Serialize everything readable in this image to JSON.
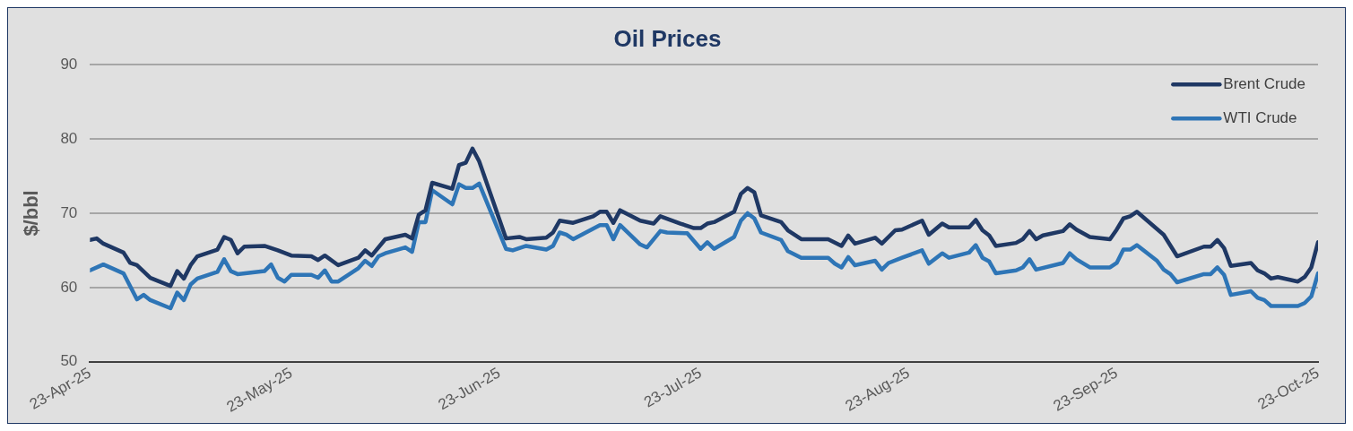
{
  "chart_data": {
    "type": "line",
    "title": "Oil Prices",
    "ylabel": "$/bbl",
    "ylim": [
      50,
      90
    ],
    "yticks": [
      50,
      60,
      70,
      80,
      90
    ],
    "xlim": [
      "2025-04-23",
      "2025-10-23"
    ],
    "xticks": [
      {
        "value": "2025-04-23",
        "label": "23-Apr-25"
      },
      {
        "value": "2025-05-23",
        "label": "23-May-25"
      },
      {
        "value": "2025-06-23",
        "label": "23-Jun-25"
      },
      {
        "value": "2025-07-23",
        "label": "23-Jul-25"
      },
      {
        "value": "2025-08-23",
        "label": "23-Aug-25"
      },
      {
        "value": "2025-09-23",
        "label": "23-Sep-25"
      },
      {
        "value": "2025-10-23",
        "label": "23-Oct-25"
      }
    ],
    "grid": "y",
    "legend": "top right",
    "series": [
      {
        "name": "Brent Crude",
        "color": "#1f3864",
        "x": [
          "2025-04-23",
          "2025-04-24",
          "2025-04-25",
          "2025-04-28",
          "2025-04-29",
          "2025-04-30",
          "2025-05-02",
          "2025-05-05",
          "2025-05-06",
          "2025-05-07",
          "2025-05-08",
          "2025-05-09",
          "2025-05-12",
          "2025-05-13",
          "2025-05-14",
          "2025-05-15",
          "2025-05-16",
          "2025-05-19",
          "2025-05-21",
          "2025-05-23",
          "2025-05-26",
          "2025-05-27",
          "2025-05-28",
          "2025-05-30",
          "2025-06-02",
          "2025-06-03",
          "2025-06-04",
          "2025-06-06",
          "2025-06-09",
          "2025-06-10",
          "2025-06-11",
          "2025-06-12",
          "2025-06-13",
          "2025-06-16",
          "2025-06-17",
          "2025-06-18",
          "2025-06-19",
          "2025-06-20",
          "2025-06-24",
          "2025-06-26",
          "2025-06-27",
          "2025-06-30",
          "2025-07-01",
          "2025-07-02",
          "2025-07-04",
          "2025-07-07",
          "2025-07-08",
          "2025-07-09",
          "2025-07-10",
          "2025-07-11",
          "2025-07-14",
          "2025-07-16",
          "2025-07-17",
          "2025-07-20",
          "2025-07-22",
          "2025-07-23",
          "2025-07-24",
          "2025-07-25",
          "2025-07-28",
          "2025-07-29",
          "2025-07-30",
          "2025-07-31",
          "2025-08-01",
          "2025-08-04",
          "2025-08-05",
          "2025-08-07",
          "2025-08-11",
          "2025-08-13",
          "2025-08-14",
          "2025-08-15",
          "2025-08-18",
          "2025-08-19",
          "2025-08-21",
          "2025-08-22",
          "2025-08-25",
          "2025-08-26",
          "2025-08-28",
          "2025-08-29",
          "2025-09-01",
          "2025-09-02",
          "2025-09-03",
          "2025-09-04",
          "2025-09-05",
          "2025-09-08",
          "2025-09-09",
          "2025-09-10",
          "2025-09-11",
          "2025-09-12",
          "2025-09-15",
          "2025-09-16",
          "2025-09-17",
          "2025-09-19",
          "2025-09-22",
          "2025-09-23",
          "2025-09-24",
          "2025-09-25",
          "2025-09-26",
          "2025-09-30",
          "2025-10-02",
          "2025-10-06",
          "2025-10-07",
          "2025-10-08",
          "2025-10-09",
          "2025-10-10",
          "2025-10-13",
          "2025-10-14",
          "2025-10-15",
          "2025-10-16",
          "2025-10-17",
          "2025-10-20",
          "2025-10-21",
          "2025-10-22",
          "2025-10-23"
        ],
        "values": [
          66.4,
          66.6,
          65.9,
          64.7,
          63.3,
          63.0,
          61.3,
          60.2,
          62.2,
          61.2,
          63.0,
          64.2,
          65.1,
          66.8,
          66.4,
          64.6,
          65.5,
          65.6,
          65.0,
          64.3,
          64.2,
          63.7,
          64.3,
          63.0,
          64.0,
          65.0,
          64.3,
          66.5,
          67.1,
          66.6,
          69.8,
          70.4,
          74.1,
          73.3,
          76.5,
          76.8,
          78.7,
          77.0,
          66.6,
          66.8,
          66.5,
          66.7,
          67.4,
          69.0,
          68.7,
          69.6,
          70.2,
          70.2,
          68.7,
          70.4,
          69.0,
          68.6,
          69.6,
          68.6,
          68.0,
          68.0,
          68.6,
          68.8,
          70.2,
          72.6,
          73.4,
          72.8,
          69.7,
          68.8,
          67.7,
          66.5,
          66.5,
          65.6,
          67.0,
          65.9,
          66.7,
          65.9,
          67.7,
          67.8,
          69.0,
          67.1,
          68.6,
          68.1,
          68.1,
          69.1,
          67.7,
          67.0,
          65.6,
          66.0,
          66.5,
          67.6,
          66.5,
          67.0,
          67.6,
          68.5,
          67.8,
          66.8,
          66.5,
          67.8,
          69.3,
          69.6,
          70.2,
          67.1,
          64.2,
          65.5,
          65.5,
          66.4,
          65.3,
          62.9,
          63.3,
          62.3,
          61.9,
          61.2,
          61.4,
          60.8,
          61.4,
          62.7,
          66.1
        ]
      },
      {
        "name": "WTI Crude",
        "color": "#2e75b6",
        "x": [
          "2025-04-23",
          "2025-04-25",
          "2025-04-28",
          "2025-04-30",
          "2025-05-01",
          "2025-05-02",
          "2025-05-05",
          "2025-05-06",
          "2025-05-07",
          "2025-05-08",
          "2025-05-09",
          "2025-05-12",
          "2025-05-13",
          "2025-05-14",
          "2025-05-15",
          "2025-05-19",
          "2025-05-20",
          "2025-05-21",
          "2025-05-22",
          "2025-05-23",
          "2025-05-26",
          "2025-05-27",
          "2025-05-28",
          "2025-05-29",
          "2025-05-30",
          "2025-06-02",
          "2025-06-03",
          "2025-06-04",
          "2025-06-05",
          "2025-06-06",
          "2025-06-09",
          "2025-06-10",
          "2025-06-11",
          "2025-06-12",
          "2025-06-13",
          "2025-06-16",
          "2025-06-17",
          "2025-06-18",
          "2025-06-19",
          "2025-06-20",
          "2025-06-24",
          "2025-06-25",
          "2025-06-27",
          "2025-06-30",
          "2025-07-01",
          "2025-07-02",
          "2025-07-03",
          "2025-07-04",
          "2025-07-08",
          "2025-07-09",
          "2025-07-10",
          "2025-07-11",
          "2025-07-14",
          "2025-07-15",
          "2025-07-17",
          "2025-07-18",
          "2025-07-21",
          "2025-07-23",
          "2025-07-24",
          "2025-07-25",
          "2025-07-28",
          "2025-07-29",
          "2025-07-30",
          "2025-07-31",
          "2025-08-01",
          "2025-08-04",
          "2025-08-05",
          "2025-08-07",
          "2025-08-11",
          "2025-08-12",
          "2025-08-13",
          "2025-08-14",
          "2025-08-15",
          "2025-08-18",
          "2025-08-19",
          "2025-08-20",
          "2025-08-22",
          "2025-08-25",
          "2025-08-26",
          "2025-08-28",
          "2025-08-29",
          "2025-09-01",
          "2025-09-02",
          "2025-09-03",
          "2025-09-04",
          "2025-09-05",
          "2025-09-08",
          "2025-09-09",
          "2025-09-10",
          "2025-09-11",
          "2025-09-15",
          "2025-09-16",
          "2025-09-17",
          "2025-09-19",
          "2025-09-22",
          "2025-09-23",
          "2025-09-24",
          "2025-09-25",
          "2025-09-26",
          "2025-09-29",
          "2025-09-30",
          "2025-10-01",
          "2025-10-02",
          "2025-10-06",
          "2025-10-07",
          "2025-10-08",
          "2025-10-09",
          "2025-10-10",
          "2025-10-13",
          "2025-10-14",
          "2025-10-15",
          "2025-10-16",
          "2025-10-20",
          "2025-10-21",
          "2025-10-22",
          "2025-10-23"
        ],
        "values": [
          62.3,
          63.1,
          61.9,
          58.4,
          59.0,
          58.3,
          57.2,
          59.3,
          58.3,
          60.4,
          61.2,
          62.1,
          63.8,
          62.2,
          61.8,
          62.2,
          63.1,
          61.3,
          60.8,
          61.7,
          61.7,
          61.3,
          62.3,
          60.8,
          60.8,
          62.6,
          63.6,
          62.9,
          64.2,
          64.6,
          65.4,
          64.8,
          68.8,
          68.8,
          73.1,
          71.2,
          73.9,
          73.4,
          73.4,
          74.0,
          65.2,
          65.0,
          65.6,
          65.1,
          65.6,
          67.4,
          67.1,
          66.5,
          68.4,
          68.4,
          66.5,
          68.4,
          65.8,
          65.4,
          67.6,
          67.4,
          67.3,
          65.2,
          66.1,
          65.2,
          66.8,
          69.0,
          70.0,
          69.3,
          67.4,
          66.4,
          64.9,
          64.0,
          64.0,
          63.2,
          62.7,
          64.1,
          63.0,
          63.6,
          62.4,
          63.3,
          64.0,
          65.0,
          63.2,
          64.6,
          64.0,
          64.7,
          65.7,
          64.0,
          63.5,
          61.9,
          62.3,
          62.7,
          63.8,
          62.4,
          63.3,
          64.6,
          63.8,
          62.7,
          62.7,
          63.3,
          65.1,
          65.1,
          65.7,
          63.6,
          62.4,
          61.8,
          60.7,
          61.8,
          61.8,
          62.7,
          61.7,
          59.0,
          59.5,
          58.6,
          58.3,
          57.5,
          57.5,
          57.9,
          58.8,
          61.9
        ]
      }
    ]
  }
}
